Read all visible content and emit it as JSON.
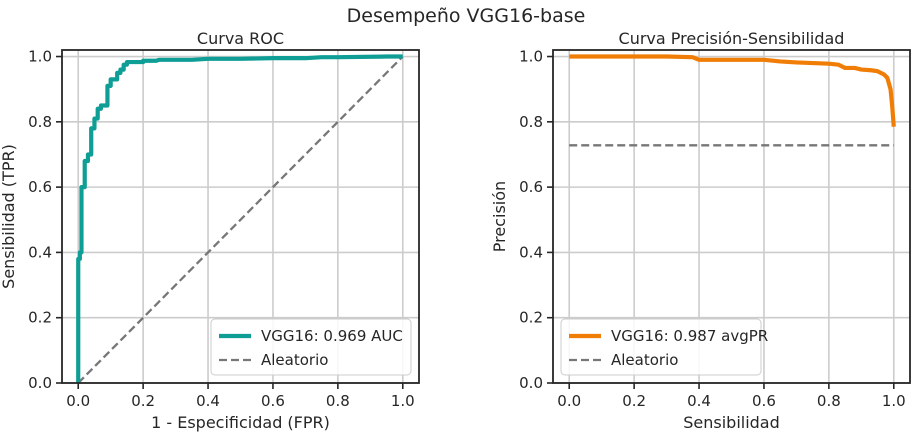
{
  "figure": {
    "suptitle": "Desempeño VGG16-base"
  },
  "colors": {
    "roc": "#0f9e96",
    "pr": "#f07d05",
    "baseline": "#777777"
  },
  "chart_data": [
    {
      "type": "line",
      "title": "Curva ROC",
      "xlabel": "1 - Especificidad (FPR)",
      "ylabel": "Sensibilidad (TPR)",
      "xlim": [
        -0.05,
        1.05
      ],
      "ylim": [
        0,
        1.02
      ],
      "xticks": [
        "0.0",
        "0.2",
        "0.4",
        "0.6",
        "0.8",
        "1.0"
      ],
      "yticks": [
        "0.0",
        "0.2",
        "0.4",
        "0.6",
        "0.8",
        "1.0"
      ],
      "grid": true,
      "legend_position": "lower-right",
      "series": [
        {
          "name": "VGG16: 0.969 AUC",
          "color": "#0f9e96",
          "style": "solid",
          "x": [
            0.0,
            0.0,
            0.005,
            0.005,
            0.01,
            0.01,
            0.02,
            0.02,
            0.03,
            0.03,
            0.04,
            0.04,
            0.05,
            0.05,
            0.06,
            0.06,
            0.07,
            0.07,
            0.09,
            0.09,
            0.1,
            0.1,
            0.12,
            0.12,
            0.13,
            0.13,
            0.14,
            0.14,
            0.15,
            0.15,
            0.2,
            0.2,
            0.24,
            0.25,
            0.35,
            0.4,
            0.5,
            0.6,
            0.7,
            0.75,
            0.8,
            0.95,
            1.0
          ],
          "y": [
            0.0,
            0.38,
            0.38,
            0.4,
            0.4,
            0.6,
            0.6,
            0.68,
            0.68,
            0.7,
            0.7,
            0.78,
            0.78,
            0.81,
            0.81,
            0.84,
            0.84,
            0.85,
            0.85,
            0.91,
            0.91,
            0.93,
            0.93,
            0.95,
            0.95,
            0.96,
            0.96,
            0.975,
            0.975,
            0.983,
            0.983,
            0.987,
            0.987,
            0.99,
            0.99,
            0.993,
            0.993,
            0.995,
            0.995,
            0.998,
            0.998,
            1.0,
            1.0
          ]
        },
        {
          "name": "Aleatorio",
          "color": "#777777",
          "style": "dashed",
          "x": [
            0.0,
            1.0
          ],
          "y": [
            0.0,
            1.0
          ]
        }
      ]
    },
    {
      "type": "line",
      "title": "Curva Precisión-Sensibilidad",
      "xlabel": "Sensibilidad",
      "ylabel": "Precisión",
      "xlim": [
        -0.05,
        1.05
      ],
      "ylim": [
        0,
        1.02
      ],
      "xticks": [
        "0.0",
        "0.2",
        "0.4",
        "0.6",
        "0.8",
        "1.0"
      ],
      "yticks": [
        "0.0",
        "0.2",
        "0.4",
        "0.6",
        "0.8",
        "1.0"
      ],
      "grid": true,
      "legend_position": "lower-left",
      "series": [
        {
          "name": "VGG16: 0.987 avgPR",
          "color": "#f07d05",
          "style": "solid",
          "x": [
            0.0,
            0.1,
            0.2,
            0.3,
            0.38,
            0.4,
            0.5,
            0.6,
            0.65,
            0.7,
            0.75,
            0.8,
            0.83,
            0.85,
            0.88,
            0.9,
            0.93,
            0.95,
            0.97,
            0.98,
            0.99,
            0.995,
            1.0
          ],
          "y": [
            1.0,
            1.0,
            1.0,
            1.0,
            0.998,
            0.99,
            0.99,
            0.99,
            0.985,
            0.982,
            0.98,
            0.978,
            0.975,
            0.965,
            0.965,
            0.96,
            0.958,
            0.955,
            0.945,
            0.935,
            0.9,
            0.85,
            0.785
          ]
        },
        {
          "name": "Aleatorio",
          "color": "#777777",
          "style": "dashed",
          "x": [
            0.0,
            1.0
          ],
          "y": [
            0.728,
            0.728
          ]
        }
      ]
    }
  ]
}
